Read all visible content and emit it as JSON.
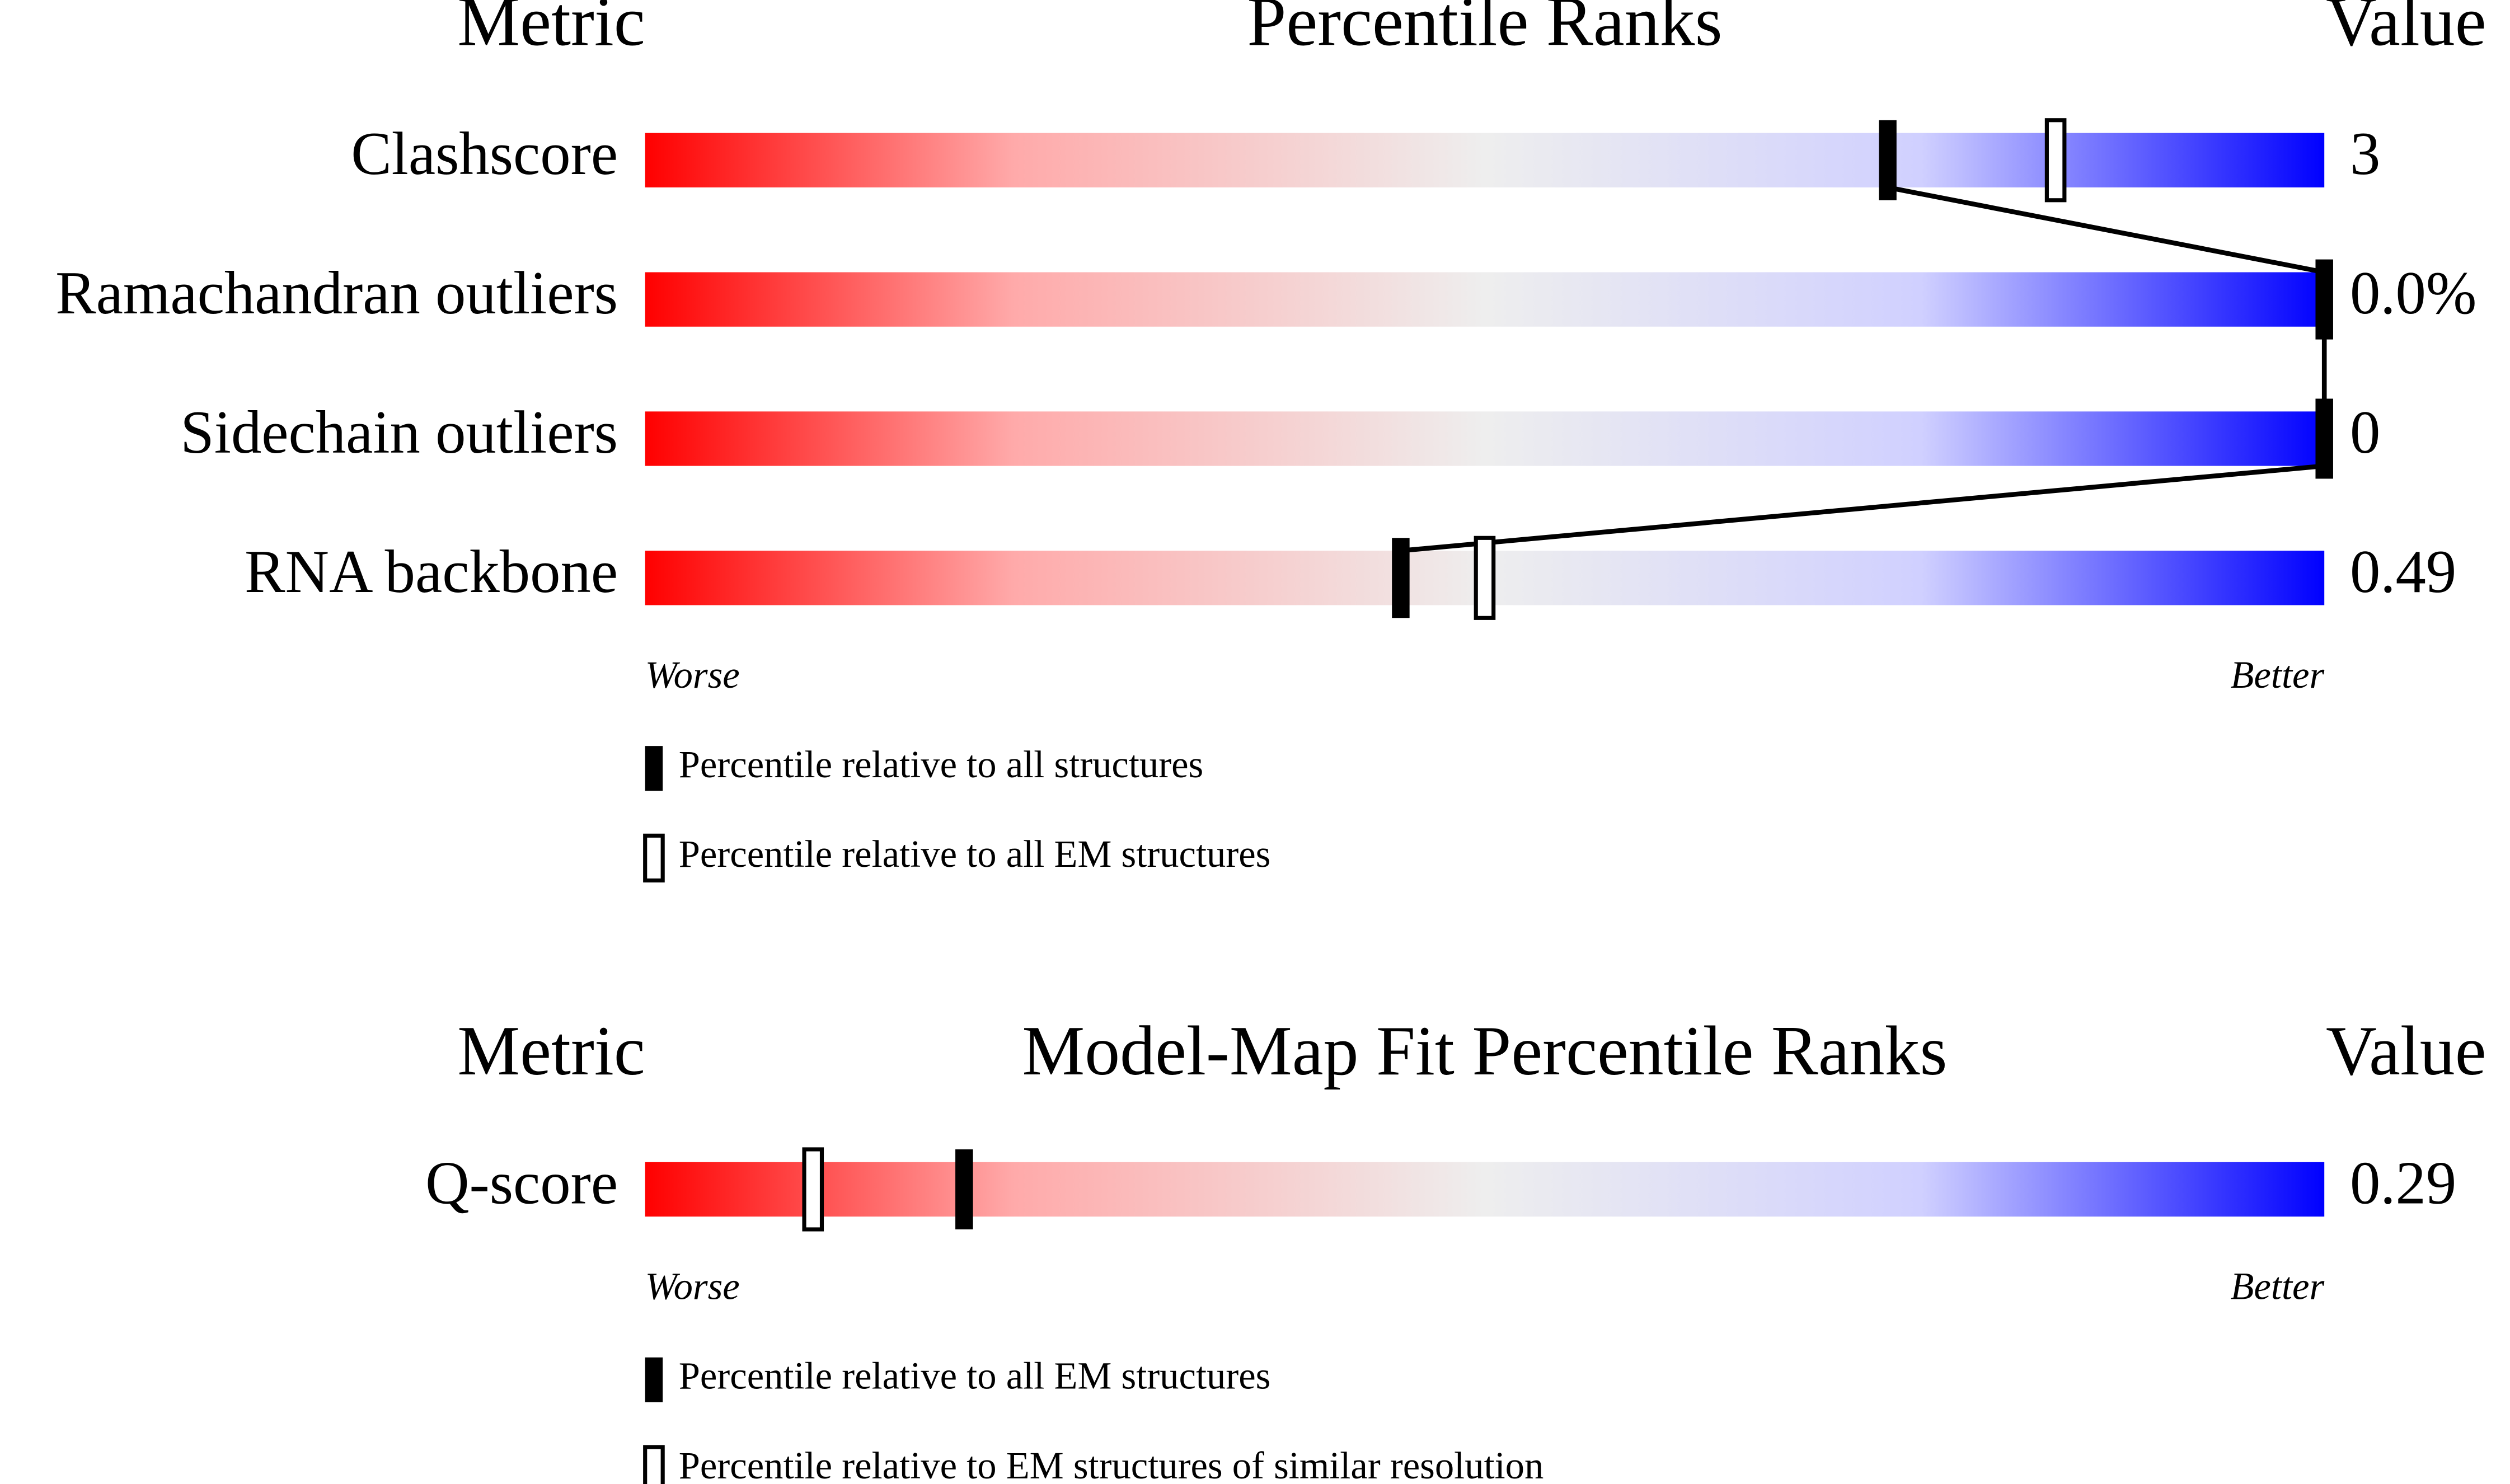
{
  "chart_data": [
    {
      "type": "slider",
      "title": "Percentile Ranks",
      "column_labels": [
        "Metric",
        "Value"
      ],
      "categories": [
        "Clashscore",
        "Ramachandran outliers",
        "Sidechain outliers",
        "RNA backbone"
      ],
      "metric_values": [
        "3",
        "0.0%",
        "0",
        "0.49"
      ],
      "xlim": [
        0,
        100
      ],
      "x_end_labels": [
        "Worse",
        "Better"
      ],
      "series": [
        {
          "name": "Percentile relative to all structures",
          "marker": "filled",
          "color": "#000000",
          "values": [
            74,
            100,
            100,
            45
          ]
        },
        {
          "name": "Percentile relative to all EM structures",
          "marker": "open",
          "color": "#000000",
          "values": [
            84,
            null,
            null,
            50
          ]
        }
      ]
    },
    {
      "type": "slider",
      "title": "Model-Map Fit Percentile Ranks",
      "column_labels": [
        "Metric",
        "Value"
      ],
      "categories": [
        "Q-score"
      ],
      "metric_values": [
        "0.29"
      ],
      "xlim": [
        0,
        100
      ],
      "x_end_labels": [
        "Worse",
        "Better"
      ],
      "series": [
        {
          "name": "Percentile relative to all EM structures",
          "marker": "filled",
          "color": "#000000",
          "values": [
            19
          ]
        },
        {
          "name": "Percentile relative to EM structures of similar resolution",
          "marker": "open",
          "color": "#000000",
          "values": [
            10
          ]
        }
      ]
    }
  ]
}
